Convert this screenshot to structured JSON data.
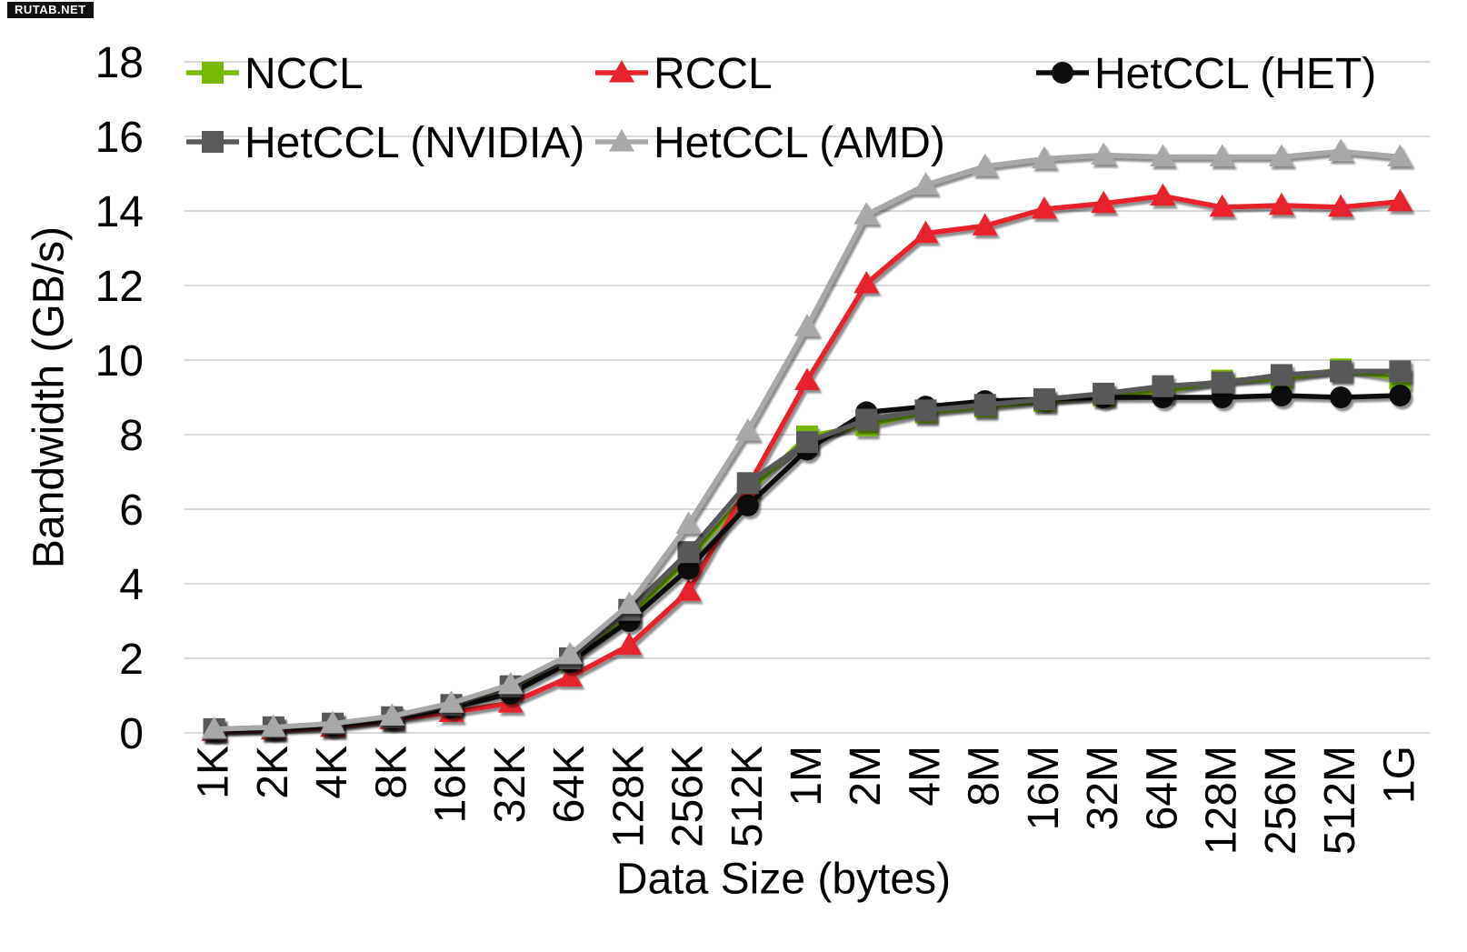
{
  "watermark": {
    "text": "RUTAB.NET"
  },
  "chart_data": {
    "type": "line",
    "title": "",
    "xlabel": "Data Size (bytes)",
    "ylabel": "Bandwidth (GB/s)",
    "ylim": [
      0,
      18
    ],
    "y_ticks": [
      0,
      2,
      4,
      6,
      8,
      10,
      12,
      14,
      16,
      18
    ],
    "grid": "horizontal",
    "legend_position": "top-inside-two-rows",
    "gridline_color": "#d9d9d9",
    "text_color": "#000000",
    "categories": [
      "1K",
      "2K",
      "4K",
      "8K",
      "16K",
      "32K",
      "64K",
      "128K",
      "256K",
      "512K",
      "1M",
      "2M",
      "4M",
      "8M",
      "16M",
      "32M",
      "64M",
      "128M",
      "256M",
      "512M",
      "1G"
    ],
    "series": [
      {
        "name": "NCCL",
        "color": "#76b900",
        "marker": "square",
        "values": [
          0.08,
          0.13,
          0.22,
          0.4,
          0.72,
          1.2,
          1.95,
          3.15,
          4.65,
          6.45,
          7.95,
          8.25,
          8.6,
          8.75,
          8.9,
          9.05,
          9.15,
          9.45,
          9.5,
          9.75,
          9.5
        ]
      },
      {
        "name": "RCCL",
        "color": "#e8222a",
        "marker": "triangle",
        "values": [
          0.04,
          0.08,
          0.15,
          0.35,
          0.55,
          0.8,
          1.5,
          2.35,
          3.8,
          6.6,
          9.45,
          12.05,
          13.4,
          13.6,
          14.05,
          14.2,
          14.4,
          14.1,
          14.15,
          14.1,
          14.25
        ]
      },
      {
        "name": "HetCCL (HET)",
        "color": "#0d0d0d",
        "marker": "circle",
        "values": [
          0.07,
          0.12,
          0.2,
          0.38,
          0.68,
          1.05,
          1.9,
          3.0,
          4.4,
          6.1,
          7.6,
          8.6,
          8.75,
          8.9,
          8.95,
          9.0,
          9.0,
          9.0,
          9.05,
          9.0,
          9.05
        ]
      },
      {
        "name": "HetCCL (NVIDIA)",
        "color": "#595959",
        "marker": "square",
        "values": [
          0.1,
          0.15,
          0.25,
          0.42,
          0.75,
          1.25,
          2.0,
          3.3,
          4.85,
          6.7,
          7.8,
          8.4,
          8.65,
          8.8,
          8.95,
          9.1,
          9.3,
          9.4,
          9.6,
          9.7,
          9.7
        ]
      },
      {
        "name": "HetCCL (AMD)",
        "color": "#a8a8a8",
        "marker": "triangle",
        "values": [
          0.1,
          0.15,
          0.25,
          0.45,
          0.8,
          1.3,
          2.1,
          3.45,
          5.6,
          8.1,
          10.9,
          13.9,
          14.7,
          15.2,
          15.4,
          15.5,
          15.45,
          15.45,
          15.45,
          15.6,
          15.45
        ]
      }
    ]
  }
}
